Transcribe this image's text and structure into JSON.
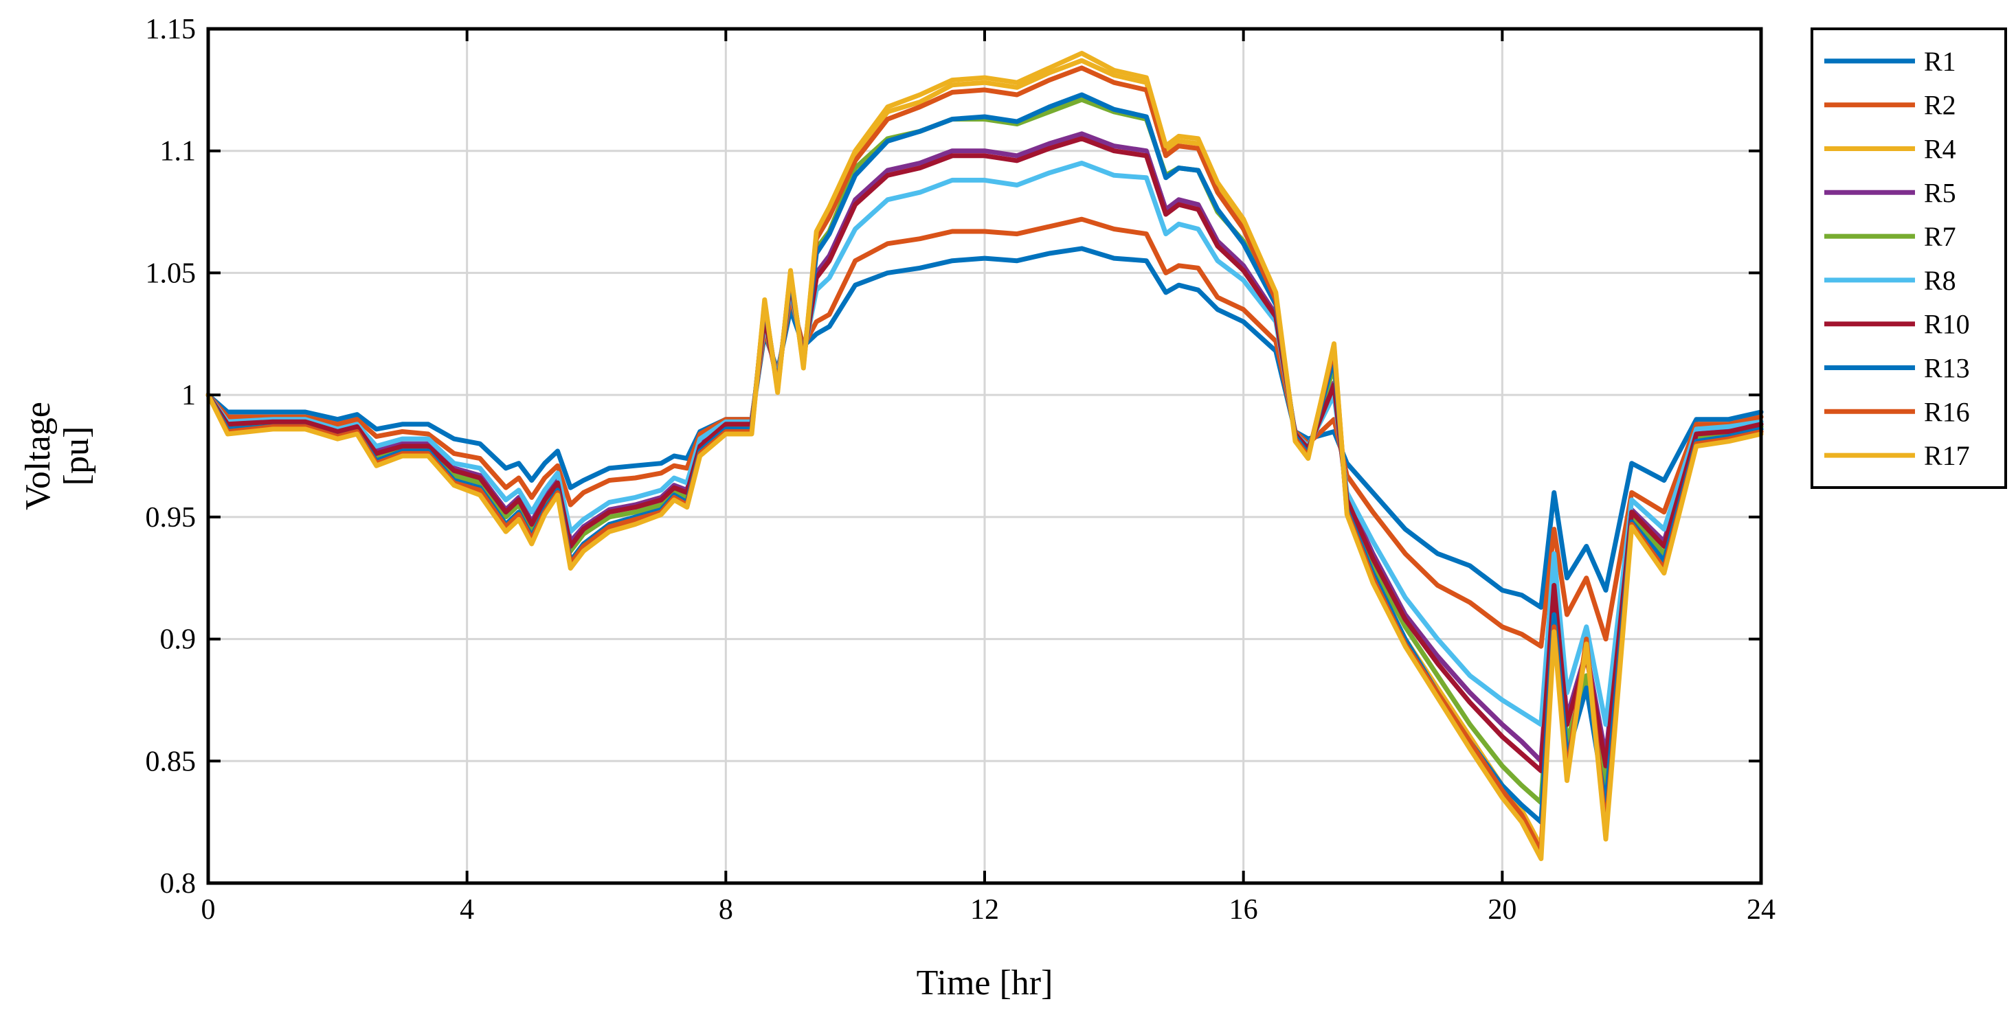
{
  "chart_data": {
    "type": "line",
    "title": "",
    "xlabel": "Time [hr]",
    "ylabel_lines": [
      "Voltage",
      "[pu]"
    ],
    "xlim": [
      0,
      24
    ],
    "ylim": [
      0.8,
      1.15
    ],
    "xticks": [
      0,
      4,
      8,
      12,
      16,
      20,
      24
    ],
    "xtick_labels": [
      "0",
      "4",
      "8",
      "12",
      "16",
      "20",
      "24"
    ],
    "yticks": [
      0.8,
      0.85,
      0.9,
      0.95,
      1.0,
      1.05,
      1.1,
      1.15
    ],
    "ytick_labels": [
      "0.8",
      "0.85",
      "0.9",
      "0.95",
      "1",
      "1.05",
      "1.1",
      "1.15"
    ],
    "grid": true,
    "legend_position": "outside-right-top",
    "x": [
      0,
      0.3,
      1,
      1.5,
      2,
      2.3,
      2.6,
      3,
      3.4,
      3.8,
      4.2,
      4.6,
      4.8,
      5.0,
      5.2,
      5.4,
      5.6,
      5.8,
      6.2,
      6.6,
      7.0,
      7.2,
      7.4,
      7.6,
      8.0,
      8.4,
      8.6,
      8.8,
      9.0,
      9.2,
      9.4,
      9.6,
      10.0,
      10.5,
      11.0,
      11.5,
      12.0,
      12.5,
      13.0,
      13.5,
      14.0,
      14.5,
      14.8,
      15.0,
      15.3,
      15.6,
      16.0,
      16.5,
      16.8,
      17.0,
      17.4,
      17.6,
      18.0,
      18.5,
      19.0,
      19.5,
      20.0,
      20.3,
      20.6,
      20.8,
      21.0,
      21.3,
      21.6,
      22.0,
      22.5,
      23.0,
      23.5,
      24.0
    ],
    "series": [
      {
        "name": "R1",
        "color": "#0072BD",
        "values": [
          1.0,
          0.993,
          0.993,
          0.993,
          0.99,
          0.992,
          0.986,
          0.988,
          0.988,
          0.982,
          0.98,
          0.97,
          0.972,
          0.965,
          0.972,
          0.977,
          0.962,
          0.965,
          0.97,
          0.971,
          0.972,
          0.975,
          0.974,
          0.985,
          0.99,
          0.99,
          1.025,
          1.01,
          1.035,
          1.02,
          1.025,
          1.028,
          1.045,
          1.05,
          1.052,
          1.055,
          1.056,
          1.055,
          1.058,
          1.06,
          1.056,
          1.055,
          1.042,
          1.045,
          1.043,
          1.035,
          1.03,
          1.018,
          0.985,
          0.982,
          0.985,
          0.972,
          0.96,
          0.945,
          0.935,
          0.93,
          0.92,
          0.918,
          0.913,
          0.96,
          0.925,
          0.938,
          0.92,
          0.972,
          0.965,
          0.99,
          0.99,
          0.993
        ]
      },
      {
        "name": "R2",
        "color": "#D95319",
        "values": [
          1.0,
          0.991,
          0.991,
          0.991,
          0.988,
          0.99,
          0.983,
          0.985,
          0.984,
          0.976,
          0.974,
          0.962,
          0.966,
          0.958,
          0.966,
          0.971,
          0.955,
          0.96,
          0.965,
          0.966,
          0.968,
          0.971,
          0.97,
          0.984,
          0.99,
          0.99,
          1.027,
          1.008,
          1.04,
          1.02,
          1.03,
          1.033,
          1.055,
          1.062,
          1.064,
          1.067,
          1.067,
          1.066,
          1.069,
          1.072,
          1.068,
          1.066,
          1.05,
          1.053,
          1.052,
          1.04,
          1.035,
          1.022,
          0.985,
          0.98,
          0.99,
          0.967,
          0.952,
          0.935,
          0.922,
          0.915,
          0.905,
          0.902,
          0.897,
          0.945,
          0.91,
          0.925,
          0.9,
          0.96,
          0.952,
          0.988,
          0.988,
          0.991
        ]
      },
      {
        "name": "R4",
        "color": "#EDB120",
        "values": [
          1.0,
          0.985,
          0.987,
          0.987,
          0.983,
          0.985,
          0.972,
          0.976,
          0.976,
          0.964,
          0.96,
          0.945,
          0.95,
          0.94,
          0.952,
          0.96,
          0.93,
          0.937,
          0.945,
          0.948,
          0.952,
          0.958,
          0.955,
          0.976,
          0.985,
          0.985,
          1.038,
          1.002,
          1.05,
          1.012,
          1.066,
          1.075,
          1.098,
          1.116,
          1.12,
          1.127,
          1.128,
          1.126,
          1.132,
          1.137,
          1.131,
          1.128,
          1.1,
          1.104,
          1.103,
          1.085,
          1.07,
          1.04,
          0.982,
          0.975,
          1.02,
          0.952,
          0.925,
          0.9,
          0.88,
          0.86,
          0.84,
          0.83,
          0.815,
          0.905,
          0.845,
          0.9,
          0.825,
          0.948,
          0.93,
          0.98,
          0.983,
          0.985
        ]
      },
      {
        "name": "R5",
        "color": "#7E2F8E",
        "values": [
          1.0,
          0.988,
          0.989,
          0.989,
          0.985,
          0.987,
          0.977,
          0.98,
          0.98,
          0.97,
          0.967,
          0.953,
          0.958,
          0.948,
          0.958,
          0.965,
          0.94,
          0.946,
          0.953,
          0.955,
          0.958,
          0.963,
          0.961,
          0.98,
          0.988,
          0.988,
          1.032,
          1.005,
          1.045,
          1.015,
          1.05,
          1.057,
          1.08,
          1.092,
          1.095,
          1.1,
          1.1,
          1.098,
          1.103,
          1.107,
          1.102,
          1.1,
          1.076,
          1.08,
          1.078,
          1.063,
          1.053,
          1.033,
          0.984,
          0.978,
          1.005,
          0.958,
          0.935,
          0.91,
          0.893,
          0.878,
          0.865,
          0.858,
          0.85,
          0.925,
          0.868,
          0.895,
          0.852,
          0.953,
          0.94,
          0.985,
          0.986,
          0.988
        ]
      },
      {
        "name": "R7",
        "color": "#77AC30",
        "values": [
          1.0,
          0.987,
          0.988,
          0.988,
          0.984,
          0.986,
          0.975,
          0.978,
          0.978,
          0.967,
          0.964,
          0.95,
          0.955,
          0.945,
          0.955,
          0.962,
          0.936,
          0.943,
          0.95,
          0.952,
          0.955,
          0.961,
          0.958,
          0.978,
          0.987,
          0.987,
          1.035,
          1.003,
          1.048,
          1.014,
          1.06,
          1.067,
          1.093,
          1.105,
          1.108,
          1.113,
          1.113,
          1.111,
          1.116,
          1.121,
          1.116,
          1.113,
          1.09,
          1.093,
          1.092,
          1.075,
          1.063,
          1.037,
          0.983,
          0.976,
          1.012,
          0.955,
          0.93,
          0.905,
          0.885,
          0.865,
          0.848,
          0.84,
          0.833,
          0.913,
          0.858,
          0.885,
          0.84,
          0.95,
          0.935,
          0.983,
          0.984,
          0.987
        ]
      },
      {
        "name": "R8",
        "color": "#4DBEEE",
        "values": [
          1.0,
          0.989,
          0.99,
          0.99,
          0.986,
          0.988,
          0.979,
          0.982,
          0.982,
          0.972,
          0.97,
          0.957,
          0.961,
          0.952,
          0.961,
          0.968,
          0.944,
          0.949,
          0.956,
          0.958,
          0.961,
          0.966,
          0.964,
          0.982,
          0.989,
          0.989,
          1.03,
          1.006,
          1.044,
          1.016,
          1.043,
          1.048,
          1.068,
          1.08,
          1.083,
          1.088,
          1.088,
          1.086,
          1.091,
          1.095,
          1.09,
          1.089,
          1.066,
          1.07,
          1.068,
          1.055,
          1.047,
          1.03,
          0.984,
          0.979,
          1.0,
          0.96,
          0.94,
          0.917,
          0.9,
          0.885,
          0.875,
          0.87,
          0.865,
          0.935,
          0.878,
          0.905,
          0.865,
          0.957,
          0.945,
          0.986,
          0.987,
          0.989
        ]
      },
      {
        "name": "R10",
        "color": "#A2142F",
        "values": [
          1.0,
          0.988,
          0.989,
          0.989,
          0.985,
          0.987,
          0.976,
          0.979,
          0.979,
          0.969,
          0.966,
          0.952,
          0.957,
          0.947,
          0.957,
          0.964,
          0.938,
          0.945,
          0.952,
          0.954,
          0.957,
          0.962,
          0.96,
          0.979,
          0.988,
          0.988,
          1.032,
          1.004,
          1.046,
          1.015,
          1.048,
          1.055,
          1.078,
          1.09,
          1.093,
          1.098,
          1.098,
          1.096,
          1.101,
          1.105,
          1.1,
          1.098,
          1.074,
          1.078,
          1.076,
          1.061,
          1.051,
          1.032,
          0.984,
          0.978,
          1.004,
          0.957,
          0.933,
          0.908,
          0.89,
          0.874,
          0.86,
          0.853,
          0.846,
          0.922,
          0.865,
          0.893,
          0.848,
          0.952,
          0.938,
          0.984,
          0.985,
          0.988
        ]
      },
      {
        "name": "R13",
        "color": "#0072BD",
        "values": [
          1.0,
          0.986,
          0.987,
          0.987,
          0.983,
          0.985,
          0.973,
          0.977,
          0.977,
          0.965,
          0.962,
          0.947,
          0.952,
          0.942,
          0.953,
          0.961,
          0.932,
          0.939,
          0.947,
          0.95,
          0.953,
          0.959,
          0.956,
          0.977,
          0.986,
          0.986,
          1.037,
          1.003,
          1.048,
          1.013,
          1.058,
          1.066,
          1.09,
          1.104,
          1.108,
          1.113,
          1.114,
          1.112,
          1.118,
          1.123,
          1.117,
          1.114,
          1.089,
          1.093,
          1.092,
          1.076,
          1.062,
          1.037,
          0.983,
          0.976,
          1.015,
          0.953,
          0.927,
          0.9,
          0.878,
          0.858,
          0.84,
          0.832,
          0.825,
          0.91,
          0.852,
          0.88,
          0.832,
          0.948,
          0.932,
          0.981,
          0.983,
          0.986
        ]
      },
      {
        "name": "R16",
        "color": "#D95319",
        "values": [
          1.0,
          0.985,
          0.987,
          0.987,
          0.983,
          0.985,
          0.972,
          0.976,
          0.976,
          0.964,
          0.961,
          0.946,
          0.951,
          0.941,
          0.952,
          0.96,
          0.931,
          0.938,
          0.946,
          0.949,
          0.952,
          0.958,
          0.955,
          0.976,
          0.985,
          0.985,
          1.038,
          1.002,
          1.05,
          1.012,
          1.064,
          1.073,
          1.096,
          1.113,
          1.118,
          1.124,
          1.125,
          1.123,
          1.129,
          1.134,
          1.128,
          1.125,
          1.098,
          1.102,
          1.101,
          1.083,
          1.068,
          1.039,
          0.982,
          0.975,
          1.019,
          0.952,
          0.925,
          0.898,
          0.878,
          0.858,
          0.838,
          0.828,
          0.813,
          0.905,
          0.845,
          0.9,
          0.822,
          0.947,
          0.929,
          0.98,
          0.982,
          0.985
        ]
      },
      {
        "name": "R17",
        "color": "#EDB120",
        "values": [
          1.0,
          0.984,
          0.986,
          0.986,
          0.982,
          0.984,
          0.971,
          0.975,
          0.975,
          0.963,
          0.959,
          0.944,
          0.949,
          0.939,
          0.951,
          0.959,
          0.929,
          0.936,
          0.944,
          0.947,
          0.951,
          0.957,
          0.954,
          0.975,
          0.984,
          0.984,
          1.039,
          1.001,
          1.051,
          1.011,
          1.067,
          1.077,
          1.1,
          1.118,
          1.123,
          1.129,
          1.13,
          1.128,
          1.134,
          1.14,
          1.133,
          1.13,
          1.102,
          1.106,
          1.105,
          1.087,
          1.072,
          1.042,
          0.981,
          0.974,
          1.021,
          0.951,
          0.923,
          0.897,
          0.876,
          0.855,
          0.835,
          0.825,
          0.81,
          0.903,
          0.842,
          0.898,
          0.818,
          0.946,
          0.927,
          0.979,
          0.981,
          0.984
        ]
      }
    ]
  }
}
